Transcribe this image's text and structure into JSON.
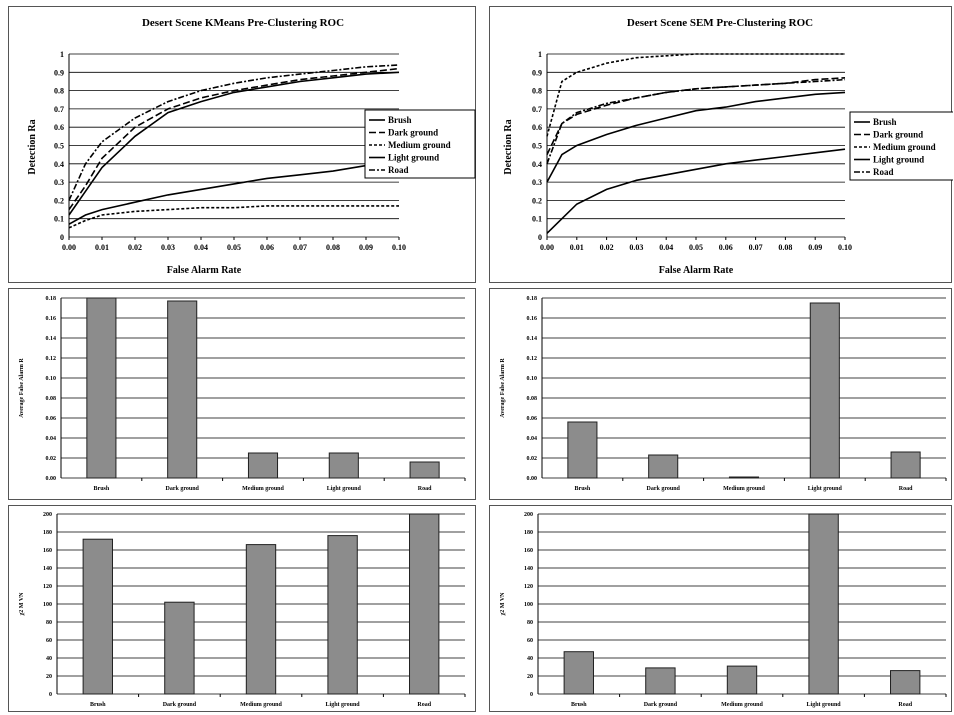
{
  "colors": {
    "line": "#000000",
    "grid": "#000000",
    "bar_fill": "#8c8c8c",
    "bar_stroke": "#202020"
  },
  "charts": [
    {
      "id": "roc_kmeans",
      "chart_data": {
        "type": "line",
        "title": "Desert Scene KMeans Pre-Clustering ROC",
        "xlabel": "False Alarm Rate",
        "ylabel": "Detection Ra",
        "xlim": [
          0,
          0.1
        ],
        "ylim": [
          0,
          1
        ],
        "xticks": [
          "0.00",
          "0.01",
          "0.02",
          "0.03",
          "0.04",
          "0.05",
          "0.06",
          "0.07",
          "0.08",
          "0.09",
          "0.10"
        ],
        "yticks": [
          "0",
          "0.1",
          "0.2",
          "0.3",
          "0.4",
          "0.5",
          "0.6",
          "0.7",
          "0.8",
          "0.9",
          "1"
        ],
        "grid": "horizontal",
        "legend_position": "right",
        "x": [
          0,
          0.005,
          0.01,
          0.02,
          0.03,
          0.04,
          0.05,
          0.06,
          0.07,
          0.08,
          0.09,
          0.1
        ],
        "series": [
          {
            "name": "Brush",
            "dash": "",
            "values": [
              0.12,
              0.25,
              0.38,
              0.55,
              0.68,
              0.74,
              0.79,
              0.82,
              0.85,
              0.87,
              0.89,
              0.9
            ]
          },
          {
            "name": "Dark ground",
            "dash": "7 3",
            "values": [
              0.15,
              0.28,
              0.43,
              0.6,
              0.7,
              0.76,
              0.8,
              0.83,
              0.86,
              0.88,
              0.9,
              0.92
            ]
          },
          {
            "name": "Medium ground",
            "dash": "3 2",
            "values": [
              0.05,
              0.09,
              0.12,
              0.14,
              0.15,
              0.16,
              0.16,
              0.17,
              0.17,
              0.17,
              0.17,
              0.17
            ]
          },
          {
            "name": "Light ground",
            "dash": "",
            "values": [
              0.07,
              0.12,
              0.15,
              0.19,
              0.23,
              0.26,
              0.29,
              0.32,
              0.34,
              0.36,
              0.39,
              0.43
            ]
          },
          {
            "name": "Road",
            "dash": "6 2 2 2",
            "values": [
              0.2,
              0.4,
              0.52,
              0.65,
              0.74,
              0.8,
              0.84,
              0.87,
              0.89,
              0.91,
              0.93,
              0.94
            ]
          }
        ]
      }
    },
    {
      "id": "roc_sem",
      "chart_data": {
        "type": "line",
        "title": "Desert Scene SEM Pre-Clustering ROC",
        "xlabel": "False Alarm Rate",
        "ylabel": "Detection Ra",
        "xlim": [
          0,
          0.1
        ],
        "ylim": [
          0,
          1
        ],
        "xticks": [
          "0.00",
          "0.01",
          "0.02",
          "0.03",
          "0.04",
          "0.05",
          "0.06",
          "0.07",
          "0.08",
          "0.09",
          "0.10"
        ],
        "yticks": [
          "0",
          "0.1",
          "0.2",
          "0.3",
          "0.4",
          "0.5",
          "0.6",
          "0.7",
          "0.8",
          "0.9",
          "1"
        ],
        "grid": "horizontal",
        "legend_position": "right",
        "x": [
          0,
          0.005,
          0.01,
          0.02,
          0.03,
          0.04,
          0.05,
          0.06,
          0.07,
          0.08,
          0.09,
          0.1
        ],
        "series": [
          {
            "name": "Brush",
            "dash": "",
            "values": [
              0.3,
              0.45,
              0.5,
              0.56,
              0.61,
              0.65,
              0.69,
              0.71,
              0.74,
              0.76,
              0.78,
              0.79
            ]
          },
          {
            "name": "Dark ground",
            "dash": "7 3",
            "values": [
              0.45,
              0.62,
              0.67,
              0.72,
              0.76,
              0.79,
              0.81,
              0.82,
              0.83,
              0.84,
              0.86,
              0.87
            ]
          },
          {
            "name": "Medium ground",
            "dash": "3 2",
            "values": [
              0.55,
              0.85,
              0.9,
              0.95,
              0.98,
              0.99,
              1.0,
              1.0,
              1.0,
              1.0,
              1.0,
              1.0
            ]
          },
          {
            "name": "Light ground",
            "dash": "",
            "values": [
              0.02,
              0.1,
              0.18,
              0.26,
              0.31,
              0.34,
              0.37,
              0.4,
              0.42,
              0.44,
              0.46,
              0.48
            ]
          },
          {
            "name": "Road",
            "dash": "6 2 2 2",
            "values": [
              0.4,
              0.62,
              0.68,
              0.73,
              0.76,
              0.79,
              0.81,
              0.82,
              0.83,
              0.84,
              0.85,
              0.86
            ]
          }
        ]
      }
    },
    {
      "id": "far_kmeans",
      "chart_data": {
        "type": "bar",
        "title": "",
        "xlabel": "",
        "ylabel": "Average False Alarm R",
        "ylim": [
          0,
          0.18
        ],
        "yticks": [
          "0.00",
          "0.02",
          "0.04",
          "0.06",
          "0.08",
          "0.10",
          "0.12",
          "0.14",
          "0.16",
          "0.18"
        ],
        "categories": [
          "Brush",
          "Dark ground",
          "Medium ground",
          "Light ground",
          "Road"
        ],
        "values": [
          0.18,
          0.177,
          0.025,
          0.025,
          0.016
        ],
        "grid": "horizontal"
      }
    },
    {
      "id": "far_sem",
      "chart_data": {
        "type": "bar",
        "title": "",
        "xlabel": "",
        "ylabel": "Average False Alarm R",
        "ylim": [
          0,
          0.18
        ],
        "yticks": [
          "0.00",
          "0.02",
          "0.04",
          "0.06",
          "0.08",
          "0.10",
          "0.12",
          "0.14",
          "0.16",
          "0.18"
        ],
        "categories": [
          "Brush",
          "Dark ground",
          "Medium ground",
          "Light ground",
          "Road"
        ],
        "values": [
          0.056,
          0.023,
          0.001,
          0.175,
          0.026
        ],
        "grid": "horizontal"
      }
    },
    {
      "id": "mvn_kmeans",
      "chart_data": {
        "type": "bar",
        "title": "",
        "xlabel": "",
        "ylabel": "χ2 M VN",
        "ylim": [
          0,
          200
        ],
        "yticks": [
          "0",
          "20",
          "40",
          "60",
          "80",
          "100",
          "120",
          "140",
          "160",
          "180",
          "200"
        ],
        "categories": [
          "Brush",
          "Dark ground",
          "Medium ground",
          "Light ground",
          "Road"
        ],
        "values": [
          172,
          102,
          166,
          176,
          200
        ],
        "grid": "horizontal"
      }
    },
    {
      "id": "mvn_sem",
      "chart_data": {
        "type": "bar",
        "title": "",
        "xlabel": "",
        "ylabel": "χ2 M VN",
        "ylim": [
          0,
          200
        ],
        "yticks": [
          "0",
          "20",
          "40",
          "60",
          "80",
          "100",
          "120",
          "140",
          "160",
          "180",
          "200"
        ],
        "categories": [
          "Brush",
          "Dark ground",
          "Medium ground",
          "Light ground",
          "Road"
        ],
        "values": [
          47,
          29,
          31,
          200,
          26
        ],
        "grid": "horizontal"
      }
    }
  ]
}
